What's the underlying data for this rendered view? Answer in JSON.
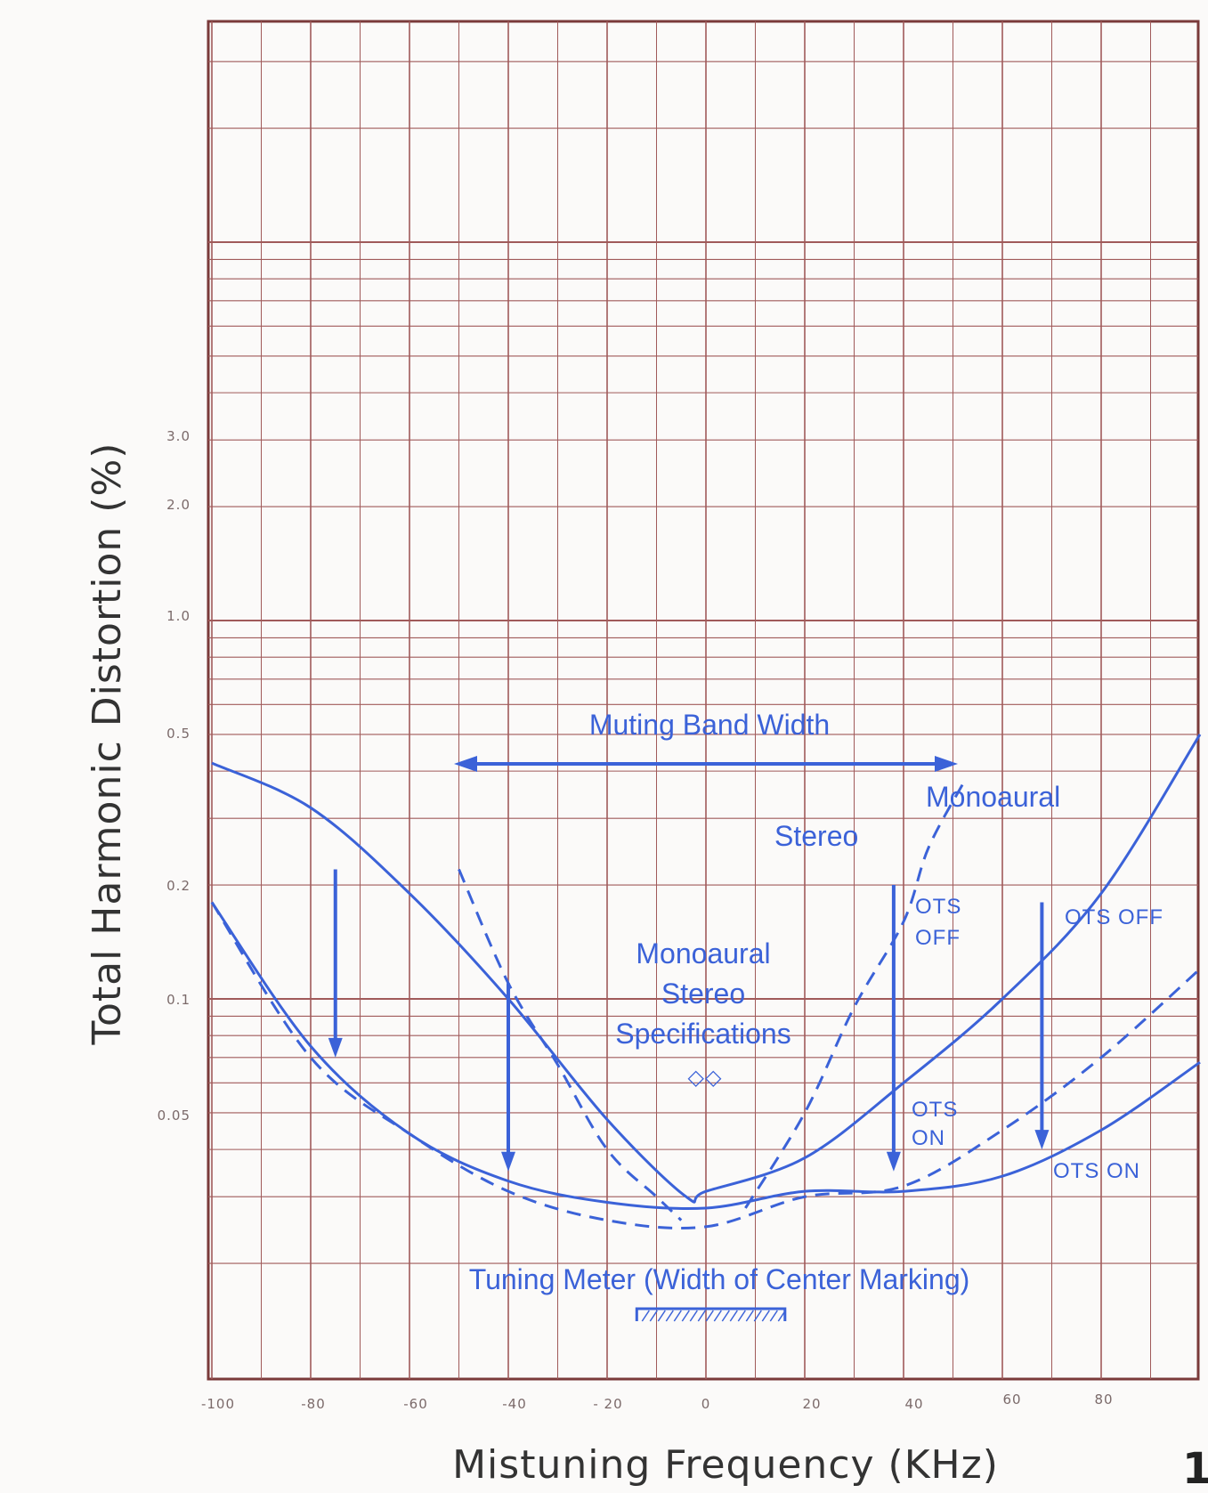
{
  "chart_data": {
    "type": "line",
    "xlabel": "Mistuning Frequency (KHz)",
    "ylabel": "Total Harmonic Distortion (%)",
    "xlim": [
      -100,
      100
    ],
    "y_scale": "log",
    "x_ticks": [
      "-100",
      "-80",
      "-60",
      "-40",
      "- 20",
      "0",
      "20",
      "40",
      "60",
      "80"
    ],
    "y_ticks": [
      "3.0",
      "2.0",
      "1.0",
      "0.5",
      "0.2",
      "0.1",
      "0.05"
    ],
    "annotations": {
      "muting": "Muting Band Width",
      "monoaural_top": "Monoaural",
      "stereo_top": "Stereo",
      "spec_line1": "Monoaural",
      "spec_line2": "Stereo",
      "spec_line3": "Specifications",
      "spec_mark": "◇◇",
      "ots_off_left_1": "OTS",
      "ots_off_left_2": "OFF",
      "ots_off_right": "OTS OFF",
      "ots_on_left_1": "OTS",
      "ots_on_left_2": "ON",
      "ots_on_right": "OTS ON",
      "tuning_meter": "Tuning Meter (Width of Center Marking)"
    },
    "corner_text": "1",
    "series": [
      {
        "style": "solid",
        "x": [
          -100,
          -80,
          -60,
          -40,
          -20,
          -4,
          0,
          20,
          40,
          60,
          80,
          100
        ],
        "y": [
          0.42,
          0.32,
          0.19,
          0.1,
          0.048,
          0.03,
          0.031,
          0.038,
          0.06,
          0.1,
          0.19,
          0.5
        ]
      },
      {
        "style": "solid",
        "x": [
          -100,
          -80,
          -60,
          -40,
          -20,
          0,
          20,
          40,
          60,
          80,
          100
        ],
        "y": [
          0.18,
          0.075,
          0.044,
          0.033,
          0.029,
          0.028,
          0.031,
          0.031,
          0.034,
          0.045,
          0.068
        ]
      },
      {
        "style": "dashed",
        "x": [
          -100,
          -80,
          -60,
          -40,
          -20,
          0,
          20,
          40,
          60,
          80,
          100
        ],
        "y": [
          0.18,
          0.07,
          0.044,
          0.031,
          0.026,
          0.025,
          0.03,
          0.032,
          0.045,
          0.07,
          0.12
        ]
      },
      {
        "style": "dashed",
        "x": [
          -50,
          -40,
          -30,
          -20,
          -10,
          -5
        ],
        "y": [
          0.22,
          0.11,
          0.067,
          0.04,
          0.03,
          0.026
        ]
      },
      {
        "style": "dashed",
        "x": [
          8,
          20,
          30,
          40,
          45,
          52
        ],
        "y": [
          0.028,
          0.05,
          0.095,
          0.16,
          0.25,
          0.37
        ]
      }
    ],
    "arrows": [
      {
        "x": -75,
        "y_from": 0.22,
        "y_to": 0.07
      },
      {
        "x": -40,
        "y_from": 0.11,
        "y_to": 0.035
      },
      {
        "x": 38,
        "y_from": 0.2,
        "y_to": 0.035
      },
      {
        "x": 68,
        "y_from": 0.18,
        "y_to": 0.04
      }
    ],
    "muting_band": [
      -50,
      50
    ],
    "tuning_meter_marking": [
      -14,
      16
    ],
    "grid": true,
    "colors": {
      "curve": "#3b62d8",
      "grid": "#a05a5a",
      "frame": "#7a3a3a"
    }
  }
}
